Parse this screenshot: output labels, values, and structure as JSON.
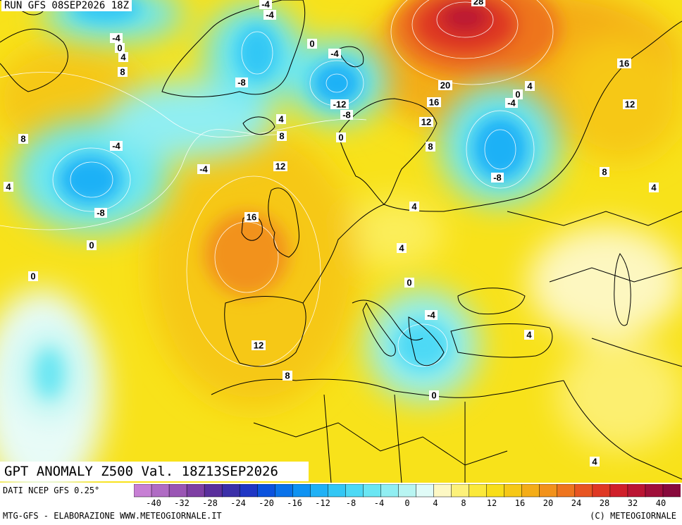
{
  "header": {
    "run_label": "RUN GFS 08SEP2026 18Z"
  },
  "title": "GPT ANOMALY Z500 Val. 18Z13SEP2026",
  "footer": {
    "source": "DATI NCEP GFS 0.25°",
    "credit_left": "MTG-GFS - ELABORAZIONE WWW.METEOGIORNALE.IT",
    "credit_right": "(C) METEOGIORNALE"
  },
  "colorbar": {
    "tick_labels": [
      "-40",
      "-32",
      "-28",
      "-24",
      "-20",
      "-16",
      "-12",
      "-8",
      "-4",
      "0",
      "4",
      "8",
      "12",
      "16",
      "20",
      "24",
      "28",
      "32",
      "40"
    ],
    "colors": [
      "#c77fd4",
      "#b06cc4",
      "#9a55b4",
      "#7e3fa3",
      "#5a2f9c",
      "#3b2fa8",
      "#1f36c4",
      "#0b52dd",
      "#0a73ea",
      "#0f93f2",
      "#1fb1f6",
      "#33c7f5",
      "#4dd9f5",
      "#6ae6f3",
      "#90eef2",
      "#b8f5f2",
      "#e0fbf7",
      "#fdf8c4",
      "#fdf17a",
      "#fbe93a",
      "#f8de19",
      "#f6c817",
      "#f4ad18",
      "#f2921b",
      "#ee751f",
      "#e85522",
      "#df3824",
      "#d01f2a",
      "#bb1533",
      "#a00f3a",
      "#880a3c"
    ]
  },
  "map": {
    "contour_labels": [
      "-4",
      "-4",
      "-4",
      "-4",
      "0",
      "4",
      "8",
      "0",
      "-4",
      "-8",
      "-12",
      "-8",
      "0",
      "4",
      "8",
      "-4",
      "8",
      "12",
      "-4",
      "-8",
      "16",
      "0",
      "4",
      "4",
      "0",
      "-4",
      "12",
      "8",
      "4",
      "0",
      "28",
      "20",
      "16",
      "12",
      "8",
      "4",
      "-4",
      "-8",
      "16",
      "12",
      "8",
      "4",
      "4",
      "4"
    ],
    "colors": {
      "land_outline": "#000000",
      "contour_line": "#ffffff"
    }
  }
}
